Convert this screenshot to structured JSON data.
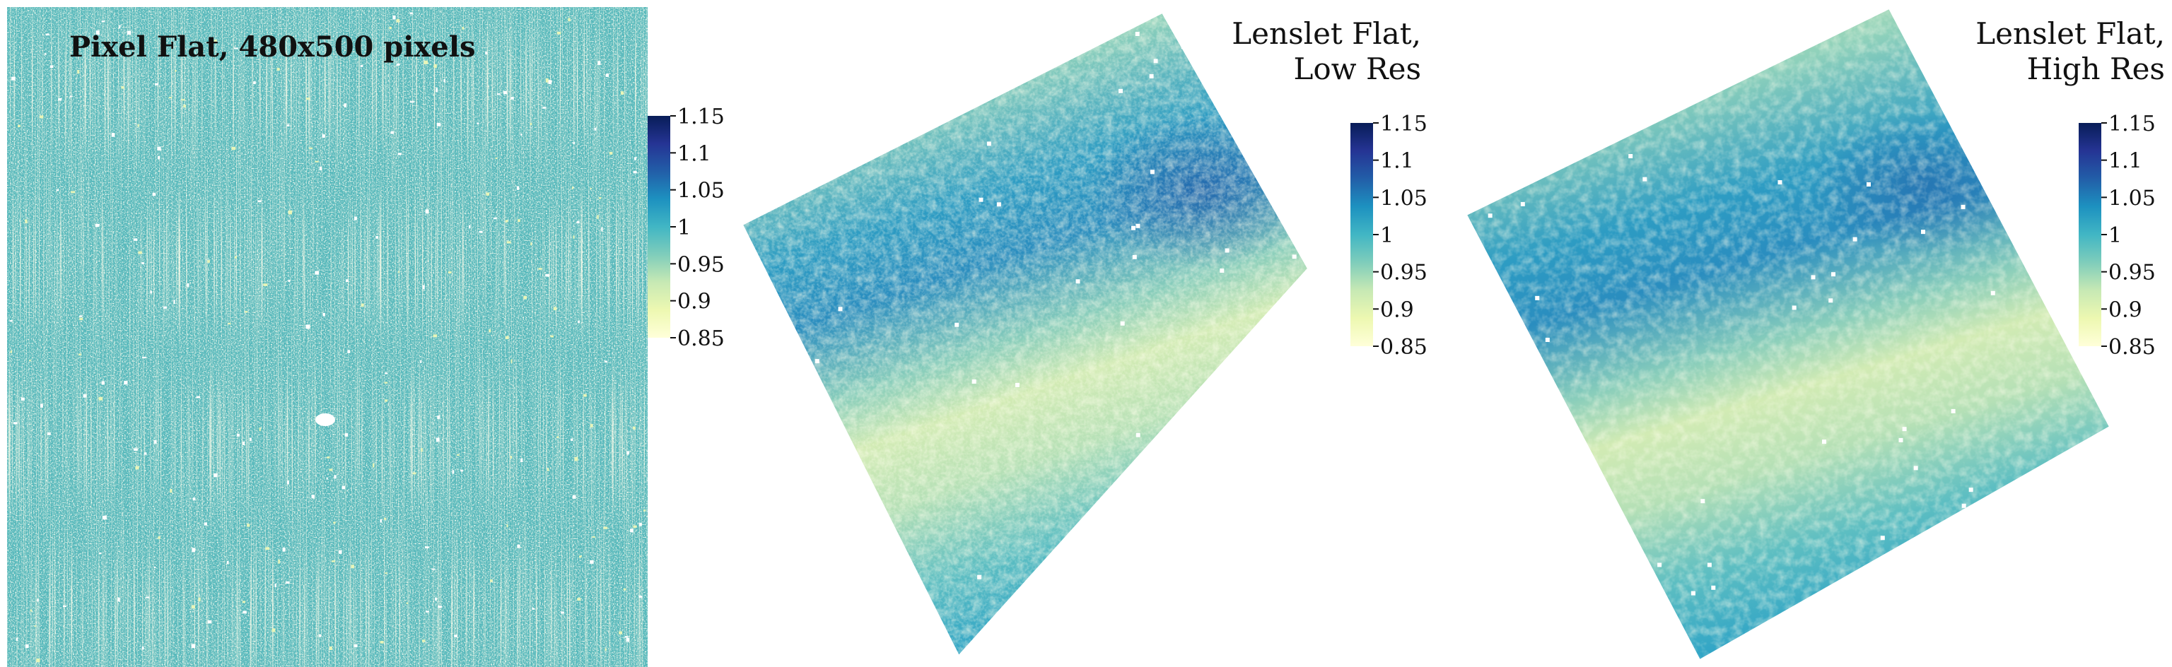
{
  "colormap": {
    "name": "YlGnBu",
    "stops": [
      "#ffffd9",
      "#edf8b1",
      "#c7e9b4",
      "#7fcdbb",
      "#41b6c4",
      "#1d91c0",
      "#225ea8",
      "#253494",
      "#081d58"
    ]
  },
  "chart_data": [
    {
      "type": "heatmap",
      "title": "Pixel Flat, 480x500 pixels",
      "grid_size": [
        480,
        500
      ],
      "map_shape": "square",
      "mean_value": 1.02,
      "features": [
        "vertical light streaks",
        "scattered bright pixels",
        "white blob near center"
      ],
      "colorbar": {
        "ticks": [
          "1.15",
          "1.1",
          "1.05",
          "1",
          "0.95",
          "0.9",
          "0.85"
        ],
        "vmin": 0.85,
        "vmax": 1.15
      }
    },
    {
      "type": "heatmap",
      "title_lines": [
        "Lenslet Flat,",
        "Low Res"
      ],
      "map_shape": "rotated-square",
      "features": [
        "diagonal dark band upper-right",
        "diagonal light band middle",
        "scattered white lenslets"
      ],
      "colorbar": {
        "ticks": [
          "1.15",
          "1.1",
          "1.05",
          "1",
          "0.95",
          "0.9",
          "0.85"
        ],
        "vmin": 0.85,
        "vmax": 1.15
      }
    },
    {
      "type": "heatmap",
      "title_lines": [
        "Lenslet Flat,",
        "High Res"
      ],
      "map_shape": "rotated-square",
      "features": [
        "diagonal dark band upper-right",
        "diagonal light band middle",
        "scattered white lenslets"
      ],
      "colorbar": {
        "ticks": [
          "1.15",
          "1.1",
          "1.05",
          "1",
          "0.95",
          "0.9",
          "0.85"
        ],
        "vmin": 0.85,
        "vmax": 1.15
      }
    }
  ]
}
